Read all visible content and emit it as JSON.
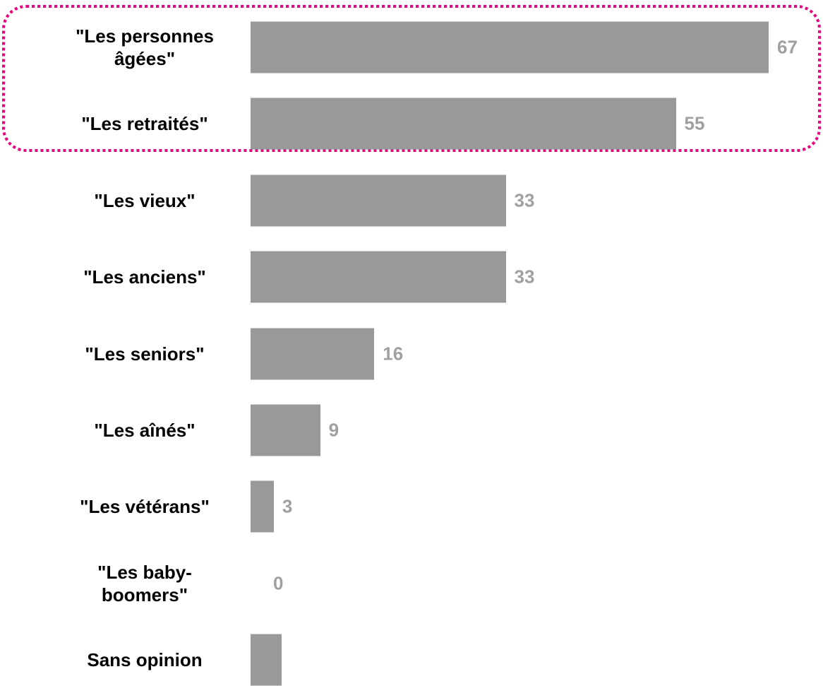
{
  "chart_data": {
    "type": "bar",
    "orientation": "horizontal",
    "categories": [
      "\"Les personnes âgées\"",
      "\"Les retraités\"",
      "\"Les vieux\"",
      "\"Les anciens\"",
      "\"Les seniors\"",
      "\"Les aînés\"",
      "\"Les vétérans\"",
      "\"Les baby-boomers\"",
      "Sans opinion"
    ],
    "values": [
      67,
      55,
      33,
      33,
      16,
      9,
      3,
      0,
      4
    ],
    "value_labels": [
      "67",
      "55",
      "33",
      "33",
      "16",
      "9",
      "3",
      "0",
      null
    ],
    "color": "#999999",
    "label_color": "#a0a0a0",
    "highlight_color": "#e6007e"
  }
}
